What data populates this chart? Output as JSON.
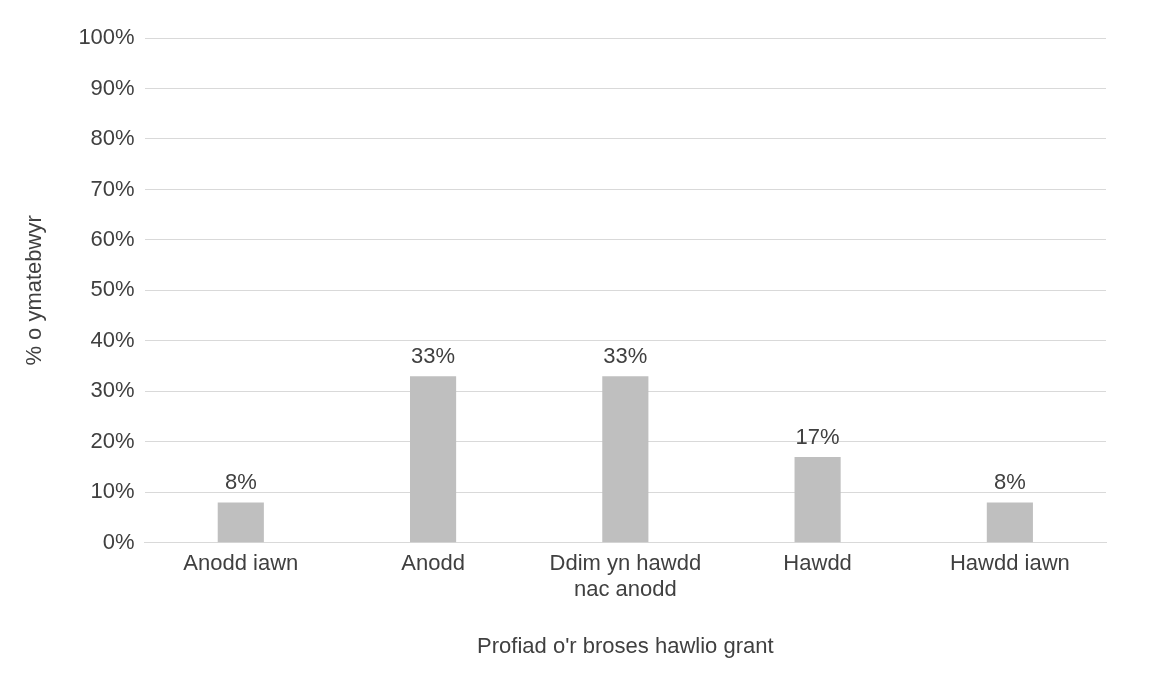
{
  "chart_data": {
    "type": "bar",
    "xlabel": "Profiad o'r broses hawlio grant",
    "ylabel": "% o ymatebwyr",
    "categories": [
      "Anodd iawn",
      "Anodd",
      "Ddim yn hawdd nac anodd",
      "Hawdd",
      "Hawdd iawn"
    ],
    "values": [
      8,
      33,
      33,
      17,
      8
    ],
    "color": "#bfbfbf",
    "value_labels": [
      "8%",
      "33%",
      "33%",
      "17%",
      "8%"
    ],
    "ylim": [
      0,
      100
    ],
    "yticks": [
      {
        "value": 0,
        "label": "0%"
      },
      {
        "value": 10,
        "label": "10%"
      },
      {
        "value": 20,
        "label": "20%"
      },
      {
        "value": 30,
        "label": "30%"
      },
      {
        "value": 40,
        "label": "40%"
      },
      {
        "value": 50,
        "label": "50%"
      },
      {
        "value": 60,
        "label": "60%"
      },
      {
        "value": 70,
        "label": "70%"
      },
      {
        "value": 80,
        "label": "80%"
      },
      {
        "value": 90,
        "label": "90%"
      },
      {
        "value": 100,
        "label": "100%"
      }
    ],
    "grid": "y",
    "legend": false
  }
}
